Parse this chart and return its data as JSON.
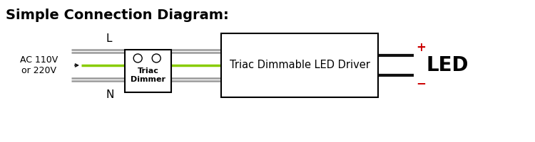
{
  "title": "Simple Connection Diagram:",
  "title_fontsize": 14,
  "bg_color": "#ffffff",
  "ac_label": "AC 110V\nor 220V",
  "wire_gray": "#999999",
  "wire_green": "#88cc00",
  "wire_black": "#111111",
  "plus_minus_color": "#cc0000",
  "driver_label": "Triac Dimmable LED Driver",
  "driver_label_fontsize": 10.5,
  "dimmer_label": "Triac\nDimmer",
  "dimmer_label_fontsize": 8,
  "led_label": "LED",
  "led_fontsize": 20
}
